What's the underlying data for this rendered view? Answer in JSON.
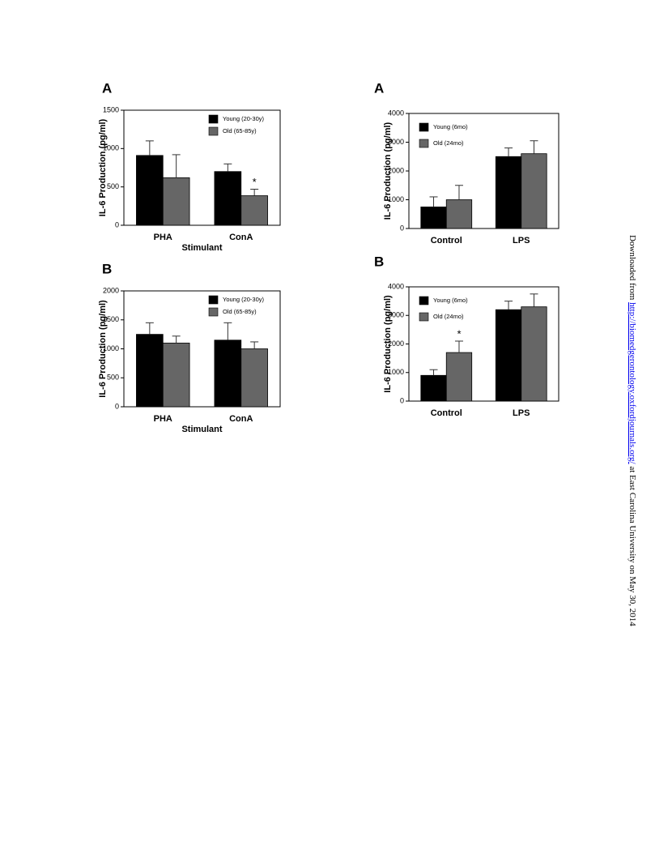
{
  "chart_data": [
    {
      "type": "bar",
      "panel": "A",
      "ylabel": "IL-6 Production (pg/ml)",
      "xlabel": "Stimulant",
      "categories": [
        "PHA",
        "ConA"
      ],
      "ylim": [
        0,
        1500
      ],
      "yticks": [
        0,
        500,
        1000,
        1500
      ],
      "legend": "upper right",
      "series": [
        {
          "name": "Young (20-30y)",
          "color": "#000000",
          "values": [
            910,
            700
          ],
          "errors": [
            190,
            100
          ]
        },
        {
          "name": "Old (65-85y)",
          "color": "#666666",
          "values": [
            620,
            385
          ],
          "errors": [
            300,
            85
          ],
          "markers": [
            null,
            "*"
          ]
        }
      ]
    },
    {
      "type": "bar",
      "panel": "B",
      "ylabel": "IL-6 Production (pg/ml)",
      "xlabel": "Stimulant",
      "categories": [
        "PHA",
        "ConA"
      ],
      "ylim": [
        0,
        2000
      ],
      "yticks": [
        0,
        500,
        1000,
        1500,
        2000
      ],
      "legend": "upper right",
      "series": [
        {
          "name": "Young (20-30y)",
          "color": "#000000",
          "values": [
            1250,
            1150
          ],
          "errors": [
            200,
            300
          ]
        },
        {
          "name": "Old (65-85y)",
          "color": "#666666",
          "values": [
            1100,
            1000
          ],
          "errors": [
            120,
            120
          ]
        }
      ]
    },
    {
      "type": "bar",
      "panel": "A",
      "ylabel": "IL-6 Production (pg/ml)",
      "categories": [
        "Control",
        "LPS"
      ],
      "ylim": [
        0,
        4000
      ],
      "yticks": [
        0,
        1000,
        2000,
        3000,
        4000
      ],
      "legend": "upper left",
      "series": [
        {
          "name": "Young (6mo)",
          "color": "#000000",
          "values": [
            750,
            2500
          ],
          "errors": [
            350,
            300
          ]
        },
        {
          "name": "Old (24mo)",
          "color": "#666666",
          "values": [
            1000,
            2600
          ],
          "errors": [
            500,
            450
          ]
        }
      ]
    },
    {
      "type": "bar",
      "panel": "B",
      "ylabel": "IL-6 Production (pg/ml)",
      "categories": [
        "Control",
        "LPS"
      ],
      "ylim": [
        0,
        4000
      ],
      "yticks": [
        0,
        1000,
        2000,
        3000,
        4000
      ],
      "legend": "upper left",
      "series": [
        {
          "name": "Young (6mo)",
          "color": "#000000",
          "values": [
            900,
            3200
          ],
          "errors": [
            200,
            300
          ]
        },
        {
          "name": "Old (24mo)",
          "color": "#666666",
          "values": [
            1700,
            3300
          ],
          "errors": [
            400,
            450
          ],
          "markers": [
            "*",
            null
          ]
        }
      ]
    }
  ],
  "download_note": {
    "before": "Downloaded from ",
    "link": "http://biomedgerontology.oxfordjournals.org/",
    "after": " at East Carolina University on May 30, 2014"
  }
}
